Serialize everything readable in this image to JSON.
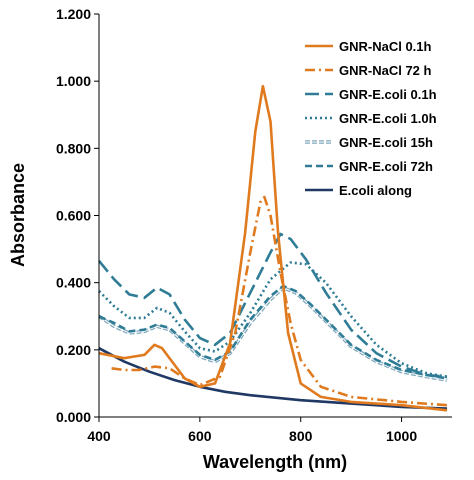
{
  "chart_data": {
    "type": "line",
    "title": "",
    "xlabel": "Wavelength (nm)",
    "ylabel": "Absorbance",
    "xlim": [
      400,
      1100
    ],
    "ylim": [
      0,
      1.2
    ],
    "x_ticks": [
      400,
      600,
      800,
      1000
    ],
    "x_tick_labels": [
      "400",
      "600",
      "800",
      "1000"
    ],
    "y_ticks": [
      0,
      0.2,
      0.4,
      0.6,
      0.8,
      1.0,
      1.2
    ],
    "y_tick_labels": [
      "0.000",
      "0.200",
      "0.400",
      "0.600",
      "0.800",
      "1.000",
      "1.200"
    ],
    "grid": false,
    "legend_position": "top-right",
    "series": [
      {
        "name": "GNR-NaCl 0.1h",
        "color": "#E07A1F",
        "dash": "solid",
        "points": [
          [
            400,
            0.19
          ],
          [
            450,
            0.175
          ],
          [
            490,
            0.185
          ],
          [
            510,
            0.215
          ],
          [
            525,
            0.205
          ],
          [
            545,
            0.165
          ],
          [
            570,
            0.115
          ],
          [
            600,
            0.09
          ],
          [
            630,
            0.1
          ],
          [
            660,
            0.22
          ],
          [
            690,
            0.55
          ],
          [
            710,
            0.85
          ],
          [
            725,
            0.985
          ],
          [
            740,
            0.88
          ],
          [
            755,
            0.55
          ],
          [
            775,
            0.25
          ],
          [
            800,
            0.1
          ],
          [
            840,
            0.06
          ],
          [
            900,
            0.045
          ],
          [
            1000,
            0.035
          ],
          [
            1090,
            0.02
          ]
        ]
      },
      {
        "name": "GNR-NaCl 72 h",
        "color": "#E07A1F",
        "dash": "dashdot",
        "points": [
          [
            425,
            0.145
          ],
          [
            450,
            0.14
          ],
          [
            480,
            0.14
          ],
          [
            510,
            0.15
          ],
          [
            540,
            0.145
          ],
          [
            570,
            0.115
          ],
          [
            600,
            0.095
          ],
          [
            640,
            0.12
          ],
          [
            670,
            0.25
          ],
          [
            700,
            0.49
          ],
          [
            720,
            0.64
          ],
          [
            728,
            0.655
          ],
          [
            740,
            0.6
          ],
          [
            760,
            0.43
          ],
          [
            780,
            0.28
          ],
          [
            800,
            0.17
          ],
          [
            840,
            0.09
          ],
          [
            900,
            0.06
          ],
          [
            1000,
            0.045
          ],
          [
            1090,
            0.035
          ]
        ]
      },
      {
        "name": "GNR-E.coli 0.1h",
        "color": "#2E7C96",
        "dash": "longdash",
        "points": [
          [
            400,
            0.465
          ],
          [
            430,
            0.41
          ],
          [
            460,
            0.365
          ],
          [
            490,
            0.355
          ],
          [
            515,
            0.385
          ],
          [
            540,
            0.365
          ],
          [
            570,
            0.29
          ],
          [
            600,
            0.235
          ],
          [
            630,
            0.215
          ],
          [
            660,
            0.25
          ],
          [
            700,
            0.37
          ],
          [
            740,
            0.49
          ],
          [
            760,
            0.545
          ],
          [
            780,
            0.53
          ],
          [
            810,
            0.47
          ],
          [
            850,
            0.37
          ],
          [
            900,
            0.26
          ],
          [
            950,
            0.19
          ],
          [
            1000,
            0.15
          ],
          [
            1050,
            0.125
          ],
          [
            1090,
            0.12
          ]
        ]
      },
      {
        "name": "GNR-E.coli 1.0h",
        "color": "#2E7C96",
        "dash": "dot",
        "points": [
          [
            400,
            0.375
          ],
          [
            430,
            0.33
          ],
          [
            460,
            0.295
          ],
          [
            490,
            0.295
          ],
          [
            515,
            0.325
          ],
          [
            540,
            0.31
          ],
          [
            570,
            0.255
          ],
          [
            600,
            0.205
          ],
          [
            630,
            0.195
          ],
          [
            660,
            0.225
          ],
          [
            700,
            0.31
          ],
          [
            740,
            0.41
          ],
          [
            780,
            0.46
          ],
          [
            810,
            0.455
          ],
          [
            850,
            0.4
          ],
          [
            900,
            0.3
          ],
          [
            950,
            0.215
          ],
          [
            1000,
            0.16
          ],
          [
            1050,
            0.13
          ],
          [
            1090,
            0.12
          ]
        ]
      },
      {
        "name": "GNR-E.coli 15h",
        "color": "#7FA8BC",
        "dash": "double",
        "points": [
          [
            400,
            0.3
          ],
          [
            430,
            0.27
          ],
          [
            460,
            0.25
          ],
          [
            490,
            0.255
          ],
          [
            515,
            0.27
          ],
          [
            540,
            0.26
          ],
          [
            570,
            0.22
          ],
          [
            600,
            0.18
          ],
          [
            630,
            0.165
          ],
          [
            660,
            0.19
          ],
          [
            700,
            0.28
          ],
          [
            740,
            0.35
          ],
          [
            765,
            0.385
          ],
          [
            790,
            0.37
          ],
          [
            820,
            0.33
          ],
          [
            860,
            0.27
          ],
          [
            900,
            0.21
          ],
          [
            950,
            0.165
          ],
          [
            1000,
            0.135
          ],
          [
            1050,
            0.12
          ],
          [
            1090,
            0.11
          ]
        ]
      },
      {
        "name": "GNR-E.coli 72h",
        "color": "#2E7C96",
        "dash": "dash",
        "points": [
          [
            400,
            0.3
          ],
          [
            430,
            0.28
          ],
          [
            460,
            0.255
          ],
          [
            490,
            0.26
          ],
          [
            515,
            0.275
          ],
          [
            540,
            0.265
          ],
          [
            570,
            0.225
          ],
          [
            600,
            0.185
          ],
          [
            630,
            0.17
          ],
          [
            660,
            0.195
          ],
          [
            700,
            0.29
          ],
          [
            740,
            0.36
          ],
          [
            765,
            0.39
          ],
          [
            790,
            0.375
          ],
          [
            820,
            0.335
          ],
          [
            860,
            0.275
          ],
          [
            900,
            0.215
          ],
          [
            950,
            0.17
          ],
          [
            1000,
            0.14
          ],
          [
            1050,
            0.125
          ],
          [
            1090,
            0.115
          ]
        ]
      },
      {
        "name": "E.coli along",
        "color": "#1F3864",
        "dash": "solid",
        "points": [
          [
            400,
            0.205
          ],
          [
            450,
            0.165
          ],
          [
            500,
            0.135
          ],
          [
            550,
            0.11
          ],
          [
            600,
            0.09
          ],
          [
            650,
            0.075
          ],
          [
            700,
            0.065
          ],
          [
            800,
            0.05
          ],
          [
            900,
            0.04
          ],
          [
            1000,
            0.03
          ],
          [
            1090,
            0.025
          ]
        ]
      }
    ]
  }
}
